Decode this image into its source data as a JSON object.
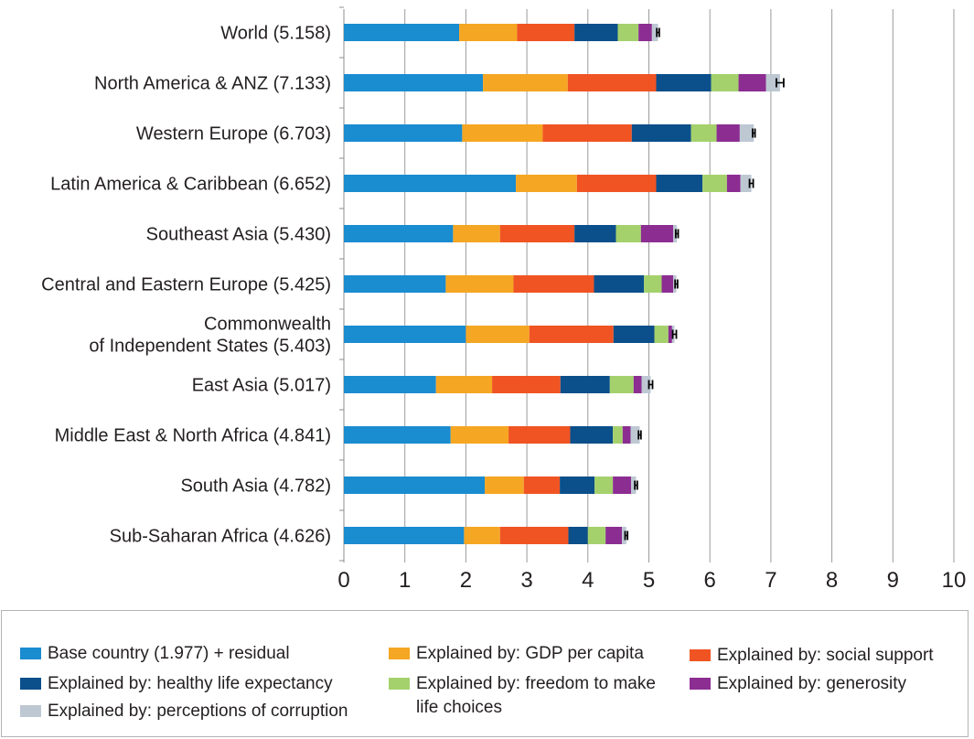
{
  "chart_data": {
    "type": "bar",
    "orientation": "horizontal",
    "stacked": true,
    "categories": [
      "World (5.158)",
      "North America & ANZ (7.133)",
      "Western Europe (6.703)",
      "Latin America & Caribbean (6.652)",
      "Southeast Asia (5.430)",
      "Central and Eastern Europe (5.425)",
      "Commonwealth\nof Independent States (5.403)",
      "East Asia (5.017)",
      "Middle East & North Africa (4.841)",
      "South Asia (4.782)",
      "Sub-Saharan Africa (4.626)"
    ],
    "series": [
      {
        "name": "Base country (1.977) + residual",
        "color": "#1a8cd0",
        "values": [
          1.89,
          2.28,
          1.94,
          2.82,
          1.79,
          1.67,
          2.0,
          1.51,
          1.75,
          2.31,
          1.97
        ]
      },
      {
        "name": "Explained by: GDP per capita",
        "color": "#f5a623",
        "values": [
          0.95,
          1.39,
          1.32,
          1.0,
          0.77,
          1.11,
          1.04,
          0.92,
          0.95,
          0.64,
          0.59
        ]
      },
      {
        "name": "Explained by: social support",
        "color": "#f05423",
        "values": [
          0.94,
          1.45,
          1.46,
          1.3,
          1.22,
          1.32,
          1.38,
          1.12,
          1.01,
          0.59,
          1.12
        ]
      },
      {
        "name": "Explained by: healthy life expectancy",
        "color": "#0b4f8b",
        "values": [
          0.71,
          0.9,
          0.97,
          0.76,
          0.68,
          0.82,
          0.67,
          0.81,
          0.7,
          0.57,
          0.32
        ]
      },
      {
        "name": "Explained by: freedom to make life choices",
        "color": "#a5d16d",
        "values": [
          0.34,
          0.45,
          0.42,
          0.4,
          0.41,
          0.29,
          0.23,
          0.39,
          0.16,
          0.3,
          0.29
        ]
      },
      {
        "name": "Explained by: generosity",
        "color": "#8c2d92",
        "values": [
          0.22,
          0.45,
          0.38,
          0.22,
          0.53,
          0.19,
          0.06,
          0.13,
          0.13,
          0.3,
          0.27
        ]
      },
      {
        "name": "Explained by: perceptions of corruption",
        "color": "#bdc8d3",
        "values": [
          0.1,
          0.23,
          0.23,
          0.18,
          0.06,
          0.05,
          0.04,
          0.15,
          0.15,
          0.08,
          0.07
        ]
      }
    ],
    "error_bars": [
      0.02,
      0.06,
      0.02,
      0.03,
      0.02,
      0.02,
      0.03,
      0.03,
      0.02,
      0.02,
      0.02
    ],
    "xticks": [
      0,
      1,
      2,
      3,
      4,
      5,
      6,
      7,
      8,
      9,
      10
    ],
    "xlim": [
      0,
      10
    ],
    "grid": "vertical",
    "legend_position": "bottom",
    "title": "",
    "xlabel": "",
    "ylabel": ""
  }
}
